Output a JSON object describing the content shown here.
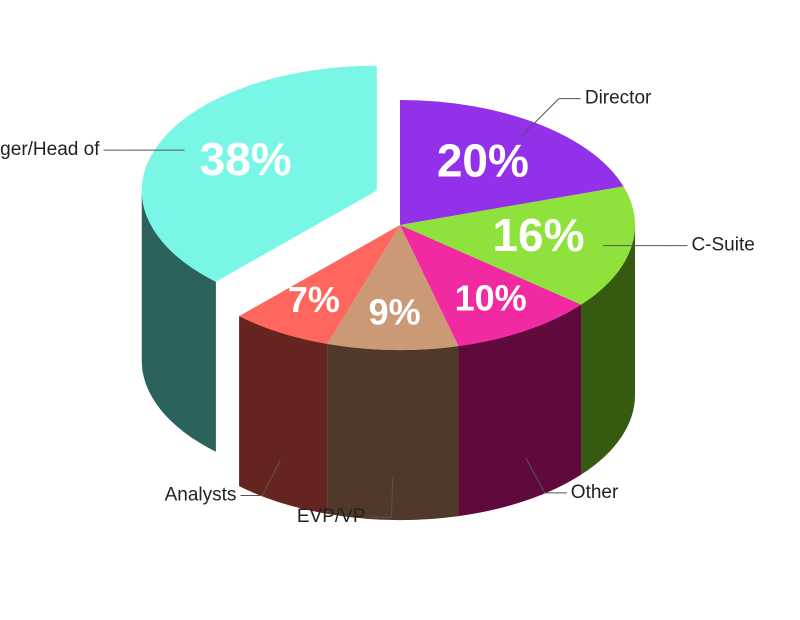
{
  "chart_data": {
    "type": "pie",
    "categories": [
      "Director",
      "C-Suite",
      "Other",
      "EVP/VP",
      "Analysts",
      "Manager/Head of"
    ],
    "values": [
      20,
      16,
      10,
      9,
      7,
      38
    ],
    "value_labels": [
      "20%",
      "16%",
      "10%",
      "9%",
      "7%",
      "38%"
    ],
    "colors": [
      "#8a1ee8",
      "#86e02a",
      "#f0189a",
      "#c8906a",
      "#ff5a50",
      "#6ff5e5"
    ],
    "exploded": "Manager/Head of"
  }
}
